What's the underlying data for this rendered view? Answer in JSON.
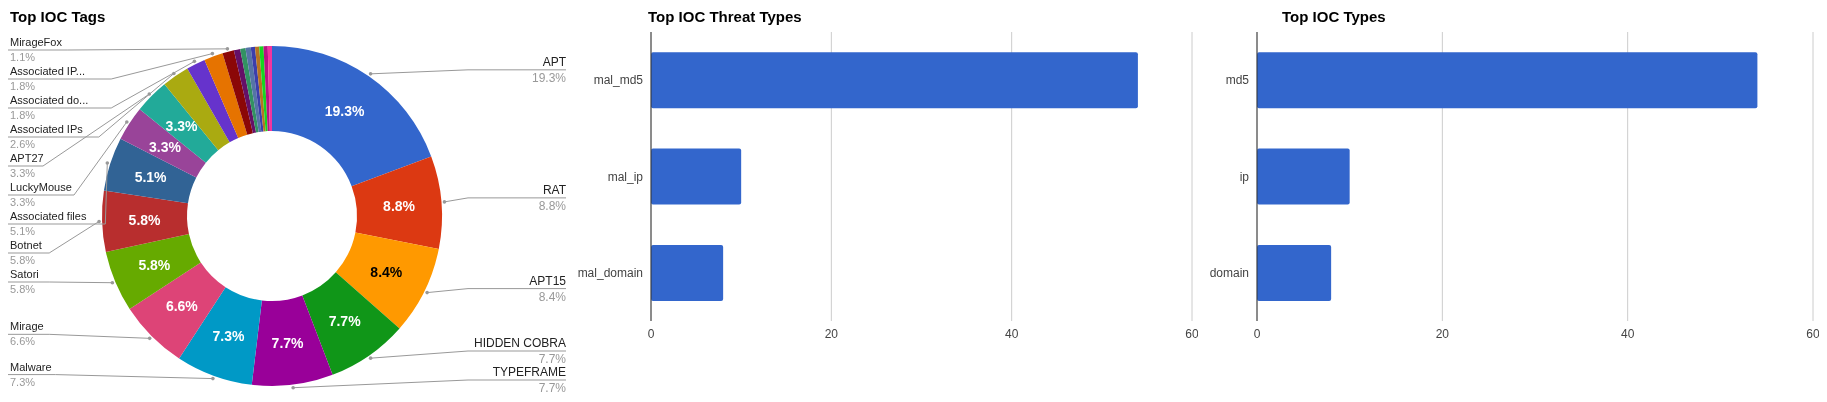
{
  "chart_data": [
    {
      "type": "donut",
      "title": "Top IOC Tags",
      "categories": [
        "APT",
        "RAT",
        "APT15",
        "HIDDEN COBRA",
        "TYPEFRAME",
        "Malware",
        "Mirage",
        "Satori",
        "Botnet",
        "Associated files",
        "LuckyMouse",
        "APT27",
        "Associated IPs",
        "Associated do...",
        "Associated IP...",
        "MirageFox",
        null,
        null,
        null,
        null,
        null,
        null,
        null,
        null
      ],
      "values": [
        19.3,
        8.8,
        8.4,
        7.7,
        7.7,
        7.3,
        6.6,
        5.8,
        5.8,
        5.1,
        3.3,
        3.3,
        2.6,
        1.8,
        1.8,
        1.1,
        0.6,
        0.5,
        0.5,
        0.4,
        0.4,
        0.4,
        0.4,
        0.4
      ],
      "colors": [
        "#3366cc",
        "#dc3912",
        "#ff9900",
        "#109618",
        "#990099",
        "#0099c6",
        "#dd4477",
        "#66aa00",
        "#b82e2e",
        "#316395",
        "#994499",
        "#22aa99",
        "#aaaa11",
        "#6633cc",
        "#e67300",
        "#8b0707",
        "#651067",
        "#329262",
        "#5574a6",
        "#3b3eac",
        "#b77322",
        "#16d620",
        "#b91383",
        "#f4359e"
      ],
      "value_labels": [
        "19.3%",
        "8.8%",
        "8.4%",
        "7.7%",
        "7.7%",
        "7.3%",
        "6.6%",
        "5.8%",
        "5.8%",
        "5.1%",
        "3.3%",
        "3.3%",
        null,
        null,
        null,
        null,
        null,
        null,
        null,
        null,
        null,
        null,
        null,
        null
      ],
      "annotations": [
        "19.3%",
        "8.8%",
        "8.4%",
        "7.7%",
        "7.7%",
        "7.3%",
        "6.6%",
        "5.8%",
        "5.8%",
        "5.1%",
        "3.3%",
        "3.3%",
        "2.6%",
        "1.8%",
        "1.8%",
        "1.1%"
      ],
      "legend": false
    },
    {
      "type": "bar",
      "title": "Top IOC Threat Types",
      "orientation": "horizontal",
      "categories": [
        "mal_md5",
        "mal_ip",
        "mal_domain"
      ],
      "values": [
        54,
        10,
        8
      ],
      "color": "#3366cc",
      "xlim": [
        0,
        60
      ],
      "xticks": [
        0,
        20,
        40,
        60
      ],
      "grid": "x",
      "legend": false
    },
    {
      "type": "bar",
      "title": "Top IOC Types",
      "orientation": "horizontal",
      "categories": [
        "md5",
        "ip",
        "domain"
      ],
      "values": [
        54,
        10,
        8
      ],
      "color": "#3366cc",
      "xlim": [
        0,
        60
      ],
      "xticks": [
        0,
        20,
        40,
        60
      ],
      "grid": "x",
      "legend": false
    }
  ]
}
